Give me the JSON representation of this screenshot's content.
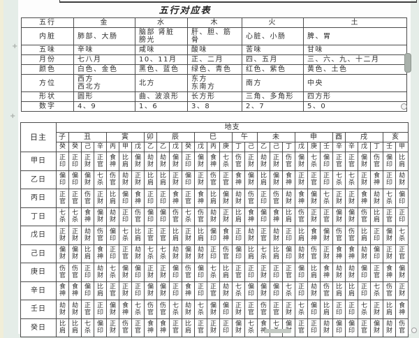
{
  "colors": {
    "page": "#fdfdfd",
    "margin_green": "#e5ede8",
    "margin_cream": "#f1eed8",
    "table_border": "#4a4a4a",
    "text": "#2e2e2e"
  },
  "icons": {
    "move_handle_glyph": "+"
  },
  "table1": {
    "title": "五行对应表",
    "header": [
      "五行",
      "金",
      "水",
      "木",
      "火",
      "土"
    ],
    "rows": [
      {
        "label": "内脏",
        "values": [
          "肺部、大肠",
          "脑部 肾脏\n膀光",
          "肝、胆、筋骨",
          "心脏、小肠",
          "脾、胃"
        ]
      },
      {
        "label": "五味",
        "values": [
          "辛味",
          "咸味",
          "酸味",
          "苦味",
          "甘味"
        ]
      },
      {
        "label": "月份",
        "values": [
          "七八月",
          "10、11月",
          "正、二月",
          "四、五月",
          "三、六、九、十二月"
        ]
      },
      {
        "label": "颜色",
        "values": [
          "白色、金色",
          "黑色、蓝色",
          "绿色、青色",
          "红色、紫色",
          "黄色、土色"
        ]
      },
      {
        "label": "方位",
        "values": [
          "西方\n西北方",
          "北方",
          "东方\n东南方",
          "南方",
          "中央"
        ]
      },
      {
        "label": "形状",
        "values": [
          "圆形",
          "曲、波浪形",
          "长方形",
          "三角、多角形",
          "四方形"
        ]
      },
      {
        "label": "数字",
        "values": [
          "4、9",
          "1、6",
          "3、8",
          "2、7",
          "5、0"
        ]
      }
    ]
  },
  "table2": {
    "corner_label": "日主",
    "dizhi_label": "地支",
    "branches": [
      {
        "name": "子",
        "span": 1
      },
      {
        "name": "丑",
        "span": 3
      },
      {
        "name": "寅",
        "span": 3
      },
      {
        "name": "卯",
        "span": 1
      },
      {
        "name": "辰",
        "span": 3
      },
      {
        "name": "巳",
        "span": 3
      },
      {
        "name": "午",
        "span": 2
      },
      {
        "name": "未",
        "span": 3
      },
      {
        "name": "申",
        "span": 3
      },
      {
        "name": "酉",
        "span": 1
      },
      {
        "name": "戌",
        "span": 3
      },
      {
        "name": "亥",
        "span": 2
      }
    ],
    "hidden_stems": [
      "癸",
      "癸",
      "己",
      "辛",
      "丙",
      "甲",
      "戊",
      "乙",
      "乙",
      "戊",
      "癸",
      "戊",
      "丙",
      "庚",
      "丁",
      "己",
      "乙",
      "己",
      "丁",
      "戊",
      "庚",
      "壬",
      "辛",
      "辛",
      "戊",
      "丁",
      "壬",
      "甲"
    ],
    "day_rows": [
      {
        "label": "甲日",
        "values": [
          "正印",
          "正印",
          "正财",
          "正官",
          "食神",
          "比肩",
          "偏财",
          "劫财",
          "劫财",
          "偏财",
          "正印",
          "偏财",
          "食神",
          "七杀",
          "伤官",
          "正财",
          "劫财",
          "正财",
          "伤官",
          "偏财",
          "七杀",
          "偏印",
          "正官",
          "正官",
          "偏财",
          "伤官",
          "偏印",
          "比肩"
        ]
      },
      {
        "label": "乙日",
        "values": [
          "偏印",
          "偏印",
          "偏财",
          "七杀",
          "伤官",
          "劫财",
          "正财",
          "比肩",
          "比肩",
          "正财",
          "偏印",
          "正财",
          "伤官",
          "正官",
          "食神",
          "偏财",
          "比肩",
          "偏财",
          "食神",
          "正财",
          "正官",
          "正印",
          "七杀",
          "七杀",
          "正财",
          "食神",
          "正印",
          "劫财"
        ]
      },
      {
        "label": "丙日",
        "values": [
          "正官",
          "正官",
          "伤官",
          "正财",
          "比肩",
          "偏印",
          "食神",
          "正印",
          "正印",
          "食神",
          "正官",
          "食神",
          "比肩",
          "偏财",
          "劫财",
          "伤官",
          "正印",
          "伤官",
          "劫财",
          "食神",
          "偏财",
          "七杀",
          "正财",
          "正财",
          "食神",
          "劫财",
          "七杀",
          "偏印"
        ]
      },
      {
        "label": "丁日",
        "values": [
          "七杀",
          "七杀",
          "食神",
          "偏财",
          "劫财",
          "正印",
          "伤官",
          "偏印",
          "偏印",
          "伤官",
          "七杀",
          "伤官",
          "劫财",
          "正财",
          "比肩",
          "食神",
          "偏印",
          "食神",
          "比肩",
          "伤官",
          "正财",
          "正官",
          "偏财",
          "偏财",
          "伤官",
          "比肩",
          "正官",
          "正印"
        ]
      },
      {
        "label": "戊日",
        "values": [
          "正财",
          "正财",
          "劫财",
          "伤官",
          "偏印",
          "七杀",
          "比肩",
          "正官",
          "正官",
          "比肩",
          "正财",
          "比肩",
          "偏印",
          "食神",
          "正印",
          "劫财",
          "正官",
          "劫财",
          "正印",
          "比肩",
          "食神",
          "偏财",
          "伤官",
          "伤官",
          "比肩",
          "正印",
          "偏财",
          "七杀"
        ]
      },
      {
        "label": "己日",
        "values": [
          "偏财",
          "偏财",
          "比肩",
          "食神",
          "正印",
          "正官",
          "劫财",
          "七杀",
          "七杀",
          "劫财",
          "偏财",
          "劫财",
          "正印",
          "伤官",
          "偏印",
          "比肩",
          "七杀",
          "比肩",
          "偏印",
          "劫财",
          "伤官",
          "正财",
          "食神",
          "食神",
          "劫财",
          "偏印",
          "正财",
          "正官"
        ]
      },
      {
        "label": "庚日",
        "values": [
          "伤官",
          "伤官",
          "正印",
          "劫财",
          "七杀",
          "偏财",
          "偏印",
          "正财",
          "正财",
          "偏印",
          "伤官",
          "偏印",
          "七杀",
          "比肩",
          "正官",
          "正印",
          "正财",
          "正印",
          "正官",
          "偏印",
          "比肩",
          "食神",
          "劫财",
          "劫财",
          "偏印",
          "正官",
          "食神",
          "偏财"
        ]
      },
      {
        "label": "辛日",
        "values": [
          "食神",
          "食神",
          "偏印",
          "比肩",
          "正官",
          "正财",
          "正印",
          "偏财",
          "偏财",
          "正印",
          "食神",
          "正印",
          "正官",
          "劫财",
          "七杀",
          "偏印",
          "偏财",
          "偏印",
          "七杀",
          "正印",
          "劫财",
          "伤官",
          "比肩",
          "比肩",
          "正印",
          "七杀",
          "伤官",
          "正财"
        ]
      },
      {
        "label": "壬日",
        "values": [
          "劫财",
          "劫财",
          "正官",
          "正印",
          "偏财",
          "食神",
          "七杀",
          "伤官",
          "伤官",
          "七杀",
          "劫财",
          "七杀",
          "偏财",
          "偏印",
          "正财",
          "正官",
          "伤官",
          "正官",
          "正财",
          "七杀",
          "偏印",
          "比肩",
          "正印",
          "正印",
          "七杀",
          "正财",
          "比肩",
          "食神"
        ]
      },
      {
        "label": "癸日",
        "values": [
          "比肩",
          "比肩",
          "七杀",
          "偏印",
          "正财",
          "伤官",
          "正官",
          "食神",
          "食神",
          "正官",
          "比肩",
          "正官",
          "正财",
          "正印",
          "偏财",
          "七杀",
          "食神",
          "七杀",
          "偏财",
          "正官",
          "正印",
          "劫财",
          "偏印",
          "偏印",
          "正官",
          "偏财",
          "劫财",
          "伤官"
        ]
      }
    ]
  }
}
